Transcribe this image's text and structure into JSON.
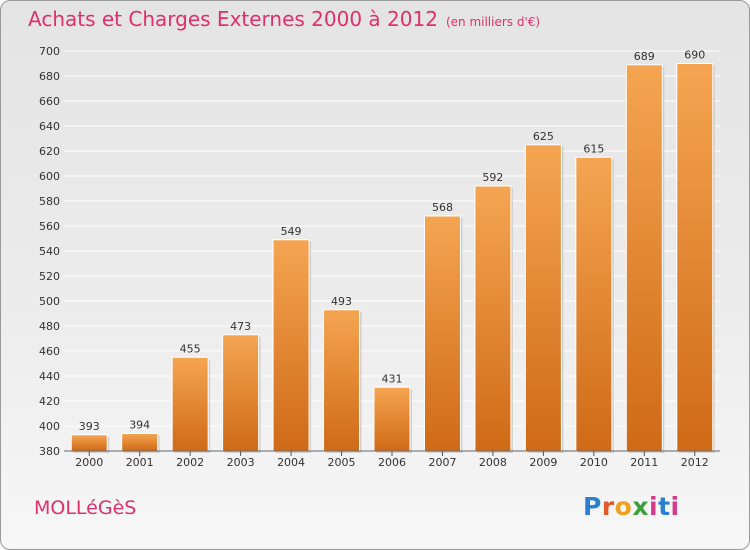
{
  "title": "Achats et Charges Externes 2000 à 2012",
  "unit_label": "(en milliers d'€)",
  "commune": "MOLLéGèS",
  "logo": {
    "p": "P",
    "r": "r",
    "o": "o",
    "x": "x",
    "i": "i",
    "t": "t",
    "i2": "i"
  },
  "colors": {
    "bar_light": "#f5a552",
    "bar_dark": "#cf6a17",
    "title": "#e0306a"
  },
  "chart_data": {
    "type": "bar",
    "title": "Achats et Charges Externes 2000 à 2012",
    "subtitle": "(en milliers d'€)",
    "categories": [
      "2000",
      "2001",
      "2002",
      "2003",
      "2004",
      "2005",
      "2006",
      "2007",
      "2008",
      "2009",
      "2010",
      "2011",
      "2012"
    ],
    "values": [
      393,
      394,
      455,
      473,
      549,
      493,
      431,
      568,
      592,
      625,
      615,
      689,
      690
    ],
    "ylim": [
      380,
      700
    ],
    "yticks": [
      380,
      400,
      420,
      440,
      460,
      480,
      500,
      520,
      540,
      560,
      580,
      600,
      620,
      640,
      660,
      680,
      700
    ],
    "grid": true,
    "legend": "none"
  }
}
